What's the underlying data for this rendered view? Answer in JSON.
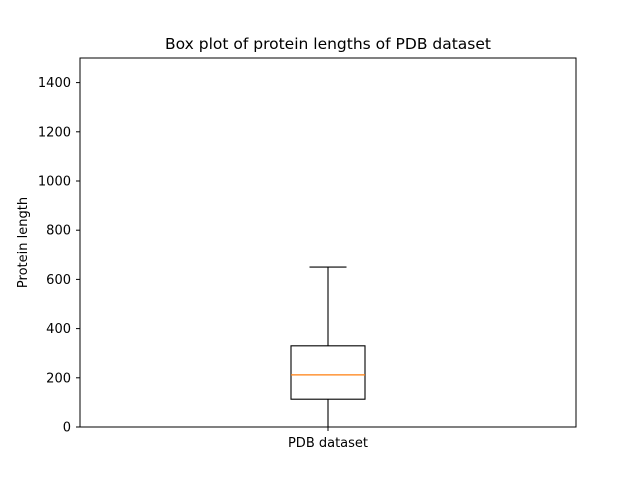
{
  "chart_data": {
    "type": "box",
    "title": "Box plot of protein lengths of PDB dataset",
    "xlabel": "",
    "ylabel": "Protein length",
    "ylim": [
      0,
      1500
    ],
    "yticks": [
      0,
      200,
      400,
      600,
      800,
      1000,
      1200,
      1400
    ],
    "grid": false,
    "categories": [
      "PDB dataset"
    ],
    "boxes": [
      {
        "category": "PDB dataset",
        "whisker_low": 0,
        "q1": 113,
        "median": 212,
        "q3": 330,
        "whisker_high": 650
      }
    ],
    "colors": {
      "box": "#000000",
      "median": "#ff7f0e"
    }
  }
}
